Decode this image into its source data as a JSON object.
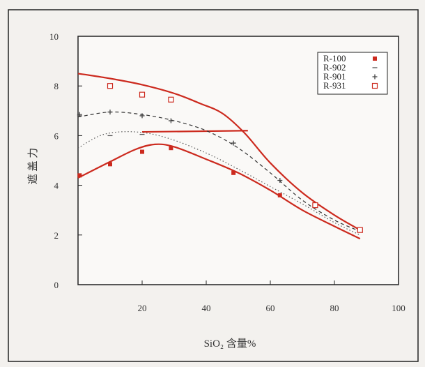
{
  "chart_data": {
    "type": "scatter",
    "xlim": [
      0,
      100
    ],
    "ylim": [
      0,
      10
    ],
    "x_ticks": [
      20,
      40,
      60,
      80,
      100
    ],
    "y_ticks": [
      0,
      2,
      4,
      6,
      8,
      10
    ],
    "xlabel": "SiO₂  含量%",
    "ylabel": "遮 盖 力",
    "legend_position": "top-right",
    "grid": false,
    "series": [
      {
        "name": "R-100",
        "marker": "filled-square",
        "color": "#cc2a1e",
        "points": [
          [
            0.5,
            4.4
          ],
          [
            10,
            4.85
          ],
          [
            20,
            5.35
          ],
          [
            29,
            5.5
          ],
          [
            48.5,
            4.5
          ],
          [
            63,
            3.6
          ]
        ]
      },
      {
        "name": "R-902",
        "marker": "dash",
        "color": "#555555",
        "points": [
          [
            0.5,
            6.8
          ],
          [
            10,
            6.0
          ],
          [
            20,
            6.05
          ]
        ]
      },
      {
        "name": "R-901",
        "marker": "plus",
        "color": "#444444",
        "points": [
          [
            0.5,
            6.85
          ],
          [
            10,
            6.95
          ],
          [
            20,
            6.8
          ],
          [
            29,
            6.6
          ],
          [
            48.5,
            5.7
          ],
          [
            63,
            4.2
          ]
        ]
      },
      {
        "name": "R-931",
        "marker": "open-square",
        "color": "#cc2a1e",
        "points": [
          [
            10,
            8.0
          ],
          [
            20,
            7.65
          ],
          [
            29,
            7.45
          ],
          [
            74,
            3.2
          ],
          [
            88,
            2.2
          ]
        ]
      }
    ],
    "curves": [
      {
        "name": "upper-red-curve",
        "style": "solid",
        "color": "#cc2a1e",
        "x": [
          0,
          10,
          20,
          30,
          38,
          45,
          52,
          60,
          70,
          80,
          88
        ],
        "y": [
          8.5,
          8.3,
          8.05,
          7.7,
          7.3,
          6.9,
          6.1,
          4.9,
          3.7,
          2.8,
          2.2
        ]
      },
      {
        "name": "lower-red-curve",
        "style": "solid",
        "color": "#cc2a1e",
        "x": [
          0,
          10,
          18,
          24,
          30,
          40,
          50,
          60,
          70,
          80,
          88
        ],
        "y": [
          4.3,
          4.95,
          5.45,
          5.65,
          5.55,
          5.05,
          4.5,
          3.8,
          3.0,
          2.35,
          1.85
        ]
      },
      {
        "name": "horizontal-red-line",
        "style": "solid",
        "color": "#cc2a1e",
        "x": [
          20,
          53
        ],
        "y": [
          6.15,
          6.2
        ]
      },
      {
        "name": "dashed-curve",
        "style": "dashed",
        "color": "#333333",
        "x": [
          0,
          10,
          20,
          30,
          40,
          50,
          60,
          70,
          80,
          88
        ],
        "y": [
          6.75,
          6.95,
          6.85,
          6.6,
          6.2,
          5.5,
          4.5,
          3.4,
          2.6,
          2.15
        ]
      },
      {
        "name": "dotted-curve",
        "style": "dotted",
        "color": "#555555",
        "x": [
          0,
          8,
          18,
          28,
          40,
          50,
          60,
          70,
          80,
          88
        ],
        "y": [
          5.5,
          6.05,
          6.15,
          5.9,
          5.3,
          4.65,
          3.95,
          3.25,
          2.5,
          2.0
        ]
      }
    ]
  }
}
